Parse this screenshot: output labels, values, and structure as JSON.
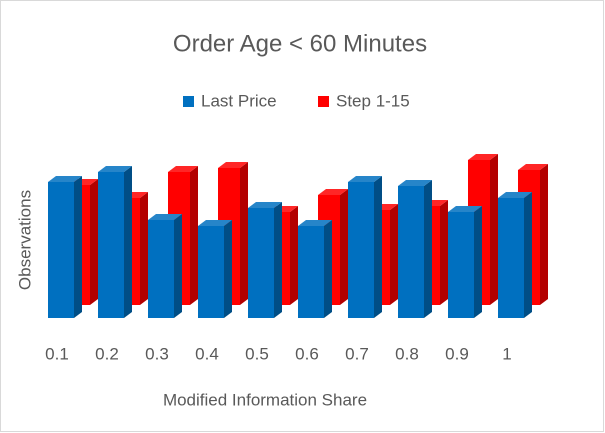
{
  "chart_data": {
    "type": "bar3d",
    "title": "Order Age < 60 Minutes",
    "x_label": "Modified Information Share",
    "y_label": "Observations",
    "categories": [
      "0.1",
      "0.2",
      "0.3",
      "0.4",
      "0.5",
      "0.6",
      "0.7",
      "0.8",
      "0.9",
      "1"
    ],
    "series": [
      {
        "name": "Last Price",
        "color": "#0070c0",
        "values": [
          136,
          146,
          98,
          92,
          110,
          92,
          136,
          132,
          106,
          120
        ]
      },
      {
        "name": "Step 1-15",
        "color": "#ff0000",
        "values": [
          120,
          107,
          133,
          137,
          93,
          110,
          95,
          99,
          145,
          135
        ]
      }
    ],
    "ylim": [
      0,
      150
    ],
    "legend": "top"
  }
}
